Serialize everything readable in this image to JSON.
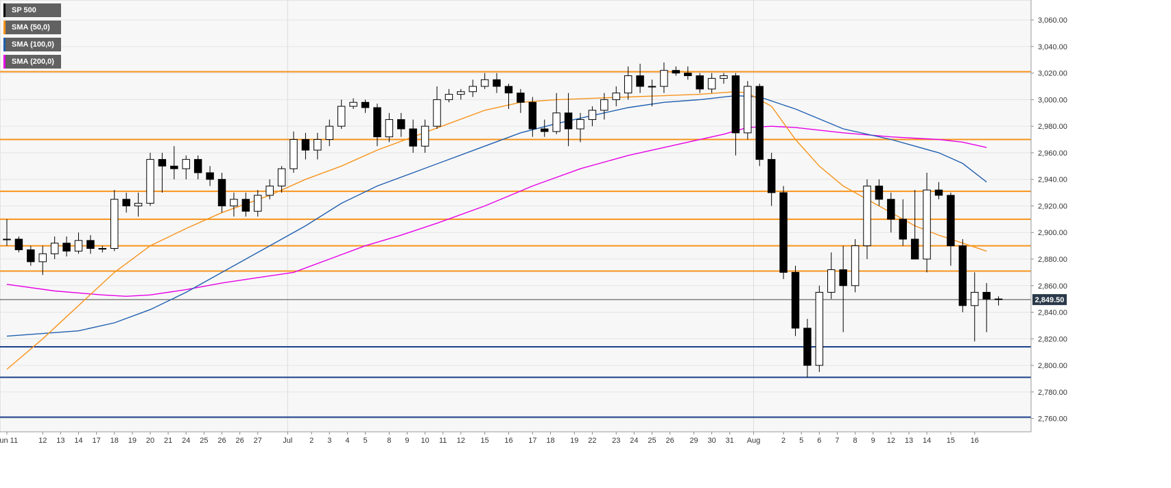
{
  "legend": [
    {
      "label": "SP 500",
      "color": "#000000"
    },
    {
      "label": "SMA (50,0)",
      "color": "#f7931a"
    },
    {
      "label": "SMA (100,0)",
      "color": "#1f5fb0"
    },
    {
      "label": "SMA (200,0)",
      "color": "#e600e6"
    }
  ],
  "current_price": "2,849.50",
  "chart_data": {
    "type": "candlestick",
    "title": "",
    "xlabel": "",
    "ylabel": "",
    "ylim": [
      2750,
      3075
    ],
    "xlim": [
      0,
      84
    ],
    "grid": true,
    "y_ticks": [
      2760,
      2780,
      2800,
      2820,
      2840,
      2860,
      2880,
      2900,
      2920,
      2940,
      2960,
      2980,
      3000,
      3020,
      3040,
      3060
    ],
    "y_tick_labels": [
      "2,760.00",
      "2,780.00",
      "2,800.00",
      "2,820.00",
      "2,840.00",
      "2,860.00",
      "2,880.00",
      "2,900.00",
      "2,920.00",
      "2,940.00",
      "2,960.00",
      "2,980.00",
      "3,000.00",
      "3,020.00",
      "3,040.00",
      "3,060.00"
    ],
    "x_tick_labels": [
      "Jun 11",
      "12",
      "13",
      "14",
      "17",
      "18",
      "19",
      "20",
      "21",
      "24",
      "25",
      "26",
      "26",
      "27",
      "Jul",
      "2",
      "3",
      "4",
      "5",
      "8",
      "9",
      "10",
      "11",
      "12",
      "15",
      "16",
      "17",
      "18",
      "19",
      "22",
      "23",
      "24",
      "25",
      "26",
      "29",
      "30",
      "31",
      "Aug",
      "2",
      "5",
      "6",
      "7",
      "8",
      "9",
      "12",
      "13",
      "14",
      "15",
      "16"
    ],
    "x_tick_positions": [
      0,
      3,
      4.5,
      6,
      7.5,
      9,
      10.5,
      12,
      13.5,
      15,
      16.5,
      18,
      19.5,
      21,
      23.5,
      25.5,
      27,
      28.5,
      30,
      32,
      33.5,
      35,
      36.5,
      38,
      40,
      42,
      44,
      45.5,
      47.5,
      49,
      51,
      52.5,
      54,
      55.5,
      57.5,
      59,
      60.5,
      62.5,
      65,
      66.5,
      68,
      69.5,
      71,
      72.5,
      74,
      75.5,
      77,
      79,
      81
    ],
    "resistance_levels": [
      3021,
      2970,
      2931,
      2910,
      2890,
      2871
    ],
    "support_levels": [
      2814,
      2791,
      2761
    ],
    "current_value": 2849.5,
    "candles": [
      [
        0,
        2895,
        2910,
        2890,
        2895
      ],
      [
        1,
        2895,
        2897,
        2885,
        2887
      ],
      [
        2,
        2887,
        2890,
        2875,
        2878
      ],
      [
        3,
        2878,
        2890,
        2868,
        2884
      ],
      [
        4,
        2884,
        2897,
        2880,
        2892
      ],
      [
        5,
        2892,
        2897,
        2882,
        2886
      ],
      [
        6,
        2886,
        2900,
        2884,
        2894
      ],
      [
        7,
        2894,
        2898,
        2884,
        2888
      ],
      [
        8,
        2888,
        2890,
        2885,
        2888
      ],
      [
        9,
        2888,
        2932,
        2886,
        2925
      ],
      [
        10,
        2925,
        2930,
        2915,
        2920
      ],
      [
        11,
        2920,
        2930,
        2912,
        2922
      ],
      [
        12,
        2922,
        2960,
        2920,
        2955
      ],
      [
        13,
        2955,
        2960,
        2930,
        2950
      ],
      [
        14,
        2950,
        2965,
        2940,
        2948
      ],
      [
        15,
        2948,
        2958,
        2940,
        2955
      ],
      [
        16,
        2955,
        2958,
        2940,
        2945
      ],
      [
        17,
        2945,
        2950,
        2935,
        2940
      ],
      [
        18,
        2940,
        2945,
        2915,
        2920
      ],
      [
        19,
        2920,
        2930,
        2912,
        2925
      ],
      [
        20,
        2925,
        2930,
        2912,
        2916
      ],
      [
        21,
        2916,
        2932,
        2912,
        2928
      ],
      [
        22,
        2928,
        2940,
        2925,
        2935
      ],
      [
        23,
        2935,
        2950,
        2930,
        2948
      ],
      [
        24,
        2948,
        2976,
        2945,
        2970
      ],
      [
        25,
        2970,
        2975,
        2955,
        2962
      ],
      [
        26,
        2962,
        2975,
        2955,
        2970
      ],
      [
        27,
        2970,
        2985,
        2965,
        2980
      ],
      [
        28,
        2980,
        3000,
        2978,
        2995
      ],
      [
        29,
        2995,
        3001,
        2993,
        2998
      ],
      [
        30,
        2998,
        3000,
        2990,
        2994
      ],
      [
        31,
        2994,
        2997,
        2965,
        2972
      ],
      [
        32,
        2972,
        2990,
        2968,
        2985
      ],
      [
        33,
        2985,
        2990,
        2972,
        2978
      ],
      [
        34,
        2978,
        2985,
        2960,
        2965
      ],
      [
        35,
        2965,
        2985,
        2960,
        2980
      ],
      [
        36,
        2980,
        3010,
        2978,
        3000
      ],
      [
        37,
        3000,
        3008,
        2998,
        3004
      ],
      [
        38,
        3004,
        3008,
        3000,
        3006
      ],
      [
        39,
        3006,
        3015,
        3002,
        3010
      ],
      [
        40,
        3010,
        3020,
        3008,
        3015
      ],
      [
        41,
        3015,
        3020,
        3005,
        3010
      ],
      [
        42,
        3010,
        3012,
        2993,
        3005
      ],
      [
        43,
        3005,
        3008,
        2990,
        2998
      ],
      [
        44,
        2998,
        3002,
        2972,
        2978
      ],
      [
        45,
        2978,
        2985,
        2972,
        2976
      ],
      [
        46,
        2976,
        3005,
        2974,
        2990
      ],
      [
        47,
        2990,
        3005,
        2965,
        2978
      ],
      [
        48,
        2978,
        2990,
        2968,
        2985
      ],
      [
        49,
        2985,
        2995,
        2980,
        2992
      ],
      [
        50,
        2992,
        3005,
        2985,
        3000
      ],
      [
        51,
        3000,
        3010,
        2995,
        3005
      ],
      [
        52,
        3005,
        3025,
        3000,
        3018
      ],
      [
        53,
        3018,
        3027,
        3005,
        3010
      ],
      [
        54,
        3010,
        3015,
        2995,
        3010
      ],
      [
        55,
        3010,
        3028,
        3005,
        3022
      ],
      [
        56,
        3022,
        3025,
        3018,
        3020
      ],
      [
        57,
        3020,
        3025,
        3015,
        3018
      ],
      [
        58,
        3018,
        3020,
        3005,
        3008
      ],
      [
        59,
        3008,
        3020,
        3005,
        3016
      ],
      [
        60,
        3016,
        3020,
        3012,
        3018
      ],
      [
        61,
        3018,
        3020,
        2958,
        2975
      ],
      [
        62,
        2975,
        3014,
        2970,
        3010
      ],
      [
        63,
        3010,
        3012,
        2950,
        2955
      ],
      [
        64,
        2955,
        2960,
        2920,
        2930
      ],
      [
        65,
        2930,
        2935,
        2865,
        2870
      ],
      [
        66,
        2870,
        2875,
        2822,
        2828
      ],
      [
        67,
        2828,
        2835,
        2791,
        2800
      ],
      [
        68,
        2800,
        2860,
        2795,
        2855
      ],
      [
        69,
        2855,
        2885,
        2850,
        2872
      ],
      [
        70,
        2872,
        2890,
        2825,
        2860
      ],
      [
        71,
        2860,
        2895,
        2855,
        2890
      ],
      [
        72,
        2890,
        2940,
        2880,
        2935
      ],
      [
        73,
        2935,
        2940,
        2920,
        2925
      ],
      [
        74,
        2925,
        2930,
        2900,
        2910
      ],
      [
        75,
        2910,
        2925,
        2890,
        2895
      ],
      [
        76,
        2895,
        2932,
        2880,
        2880
      ],
      [
        77,
        2880,
        2945,
        2870,
        2932
      ],
      [
        78,
        2932,
        2938,
        2925,
        2928
      ],
      [
        79,
        2928,
        2930,
        2875,
        2890
      ],
      [
        80,
        2890,
        2895,
        2840,
        2845
      ],
      [
        81,
        2845,
        2870,
        2818,
        2855
      ],
      [
        82,
        2855,
        2862,
        2825,
        2850
      ],
      [
        83,
        2850,
        2852,
        2845,
        2849.5
      ]
    ],
    "sma50": [
      [
        0,
        2797
      ],
      [
        3,
        2820
      ],
      [
        6,
        2845
      ],
      [
        9,
        2870
      ],
      [
        12,
        2890
      ],
      [
        15,
        2903
      ],
      [
        18,
        2915
      ],
      [
        22,
        2928
      ],
      [
        25,
        2940
      ],
      [
        28,
        2950
      ],
      [
        31,
        2962
      ],
      [
        34,
        2972
      ],
      [
        37,
        2982
      ],
      [
        40,
        2992
      ],
      [
        43,
        2998
      ],
      [
        46,
        3000
      ],
      [
        49,
        3001
      ],
      [
        52,
        3002
      ],
      [
        55,
        3003
      ],
      [
        58,
        3004
      ],
      [
        61,
        3006
      ],
      [
        62,
        3005
      ],
      [
        64,
        2995
      ],
      [
        66,
        2970
      ],
      [
        68,
        2950
      ],
      [
        70,
        2935
      ],
      [
        72,
        2925
      ],
      [
        74,
        2915
      ],
      [
        76,
        2905
      ],
      [
        78,
        2898
      ],
      [
        80,
        2892
      ],
      [
        82,
        2886
      ]
    ],
    "sma100": [
      [
        0,
        2822
      ],
      [
        6,
        2826
      ],
      [
        9,
        2832
      ],
      [
        12,
        2842
      ],
      [
        15,
        2855
      ],
      [
        18,
        2870
      ],
      [
        22,
        2890
      ],
      [
        25,
        2905
      ],
      [
        28,
        2922
      ],
      [
        31,
        2935
      ],
      [
        34,
        2945
      ],
      [
        37,
        2955
      ],
      [
        40,
        2965
      ],
      [
        43,
        2975
      ],
      [
        46,
        2982
      ],
      [
        49,
        2988
      ],
      [
        52,
        2994
      ],
      [
        55,
        2998
      ],
      [
        58,
        3000
      ],
      [
        61,
        3003
      ],
      [
        63,
        3002
      ],
      [
        66,
        2993
      ],
      [
        70,
        2978
      ],
      [
        74,
        2970
      ],
      [
        76,
        2965
      ],
      [
        78,
        2960
      ],
      [
        80,
        2952
      ],
      [
        82,
        2938
      ]
    ],
    "sma200": [
      [
        0,
        2861
      ],
      [
        4,
        2856
      ],
      [
        8,
        2853
      ],
      [
        10,
        2852
      ],
      [
        12,
        2853
      ],
      [
        15,
        2857
      ],
      [
        18,
        2862
      ],
      [
        21,
        2866
      ],
      [
        24,
        2870
      ],
      [
        27,
        2880
      ],
      [
        30,
        2890
      ],
      [
        33,
        2898
      ],
      [
        36,
        2907
      ],
      [
        40,
        2920
      ],
      [
        44,
        2935
      ],
      [
        48,
        2948
      ],
      [
        52,
        2958
      ],
      [
        56,
        2966
      ],
      [
        60,
        2974
      ],
      [
        62,
        2979
      ],
      [
        64,
        2980
      ],
      [
        66,
        2979
      ],
      [
        70,
        2975
      ],
      [
        74,
        2972
      ],
      [
        78,
        2970
      ],
      [
        80,
        2968
      ],
      [
        82,
        2964
      ]
    ]
  }
}
